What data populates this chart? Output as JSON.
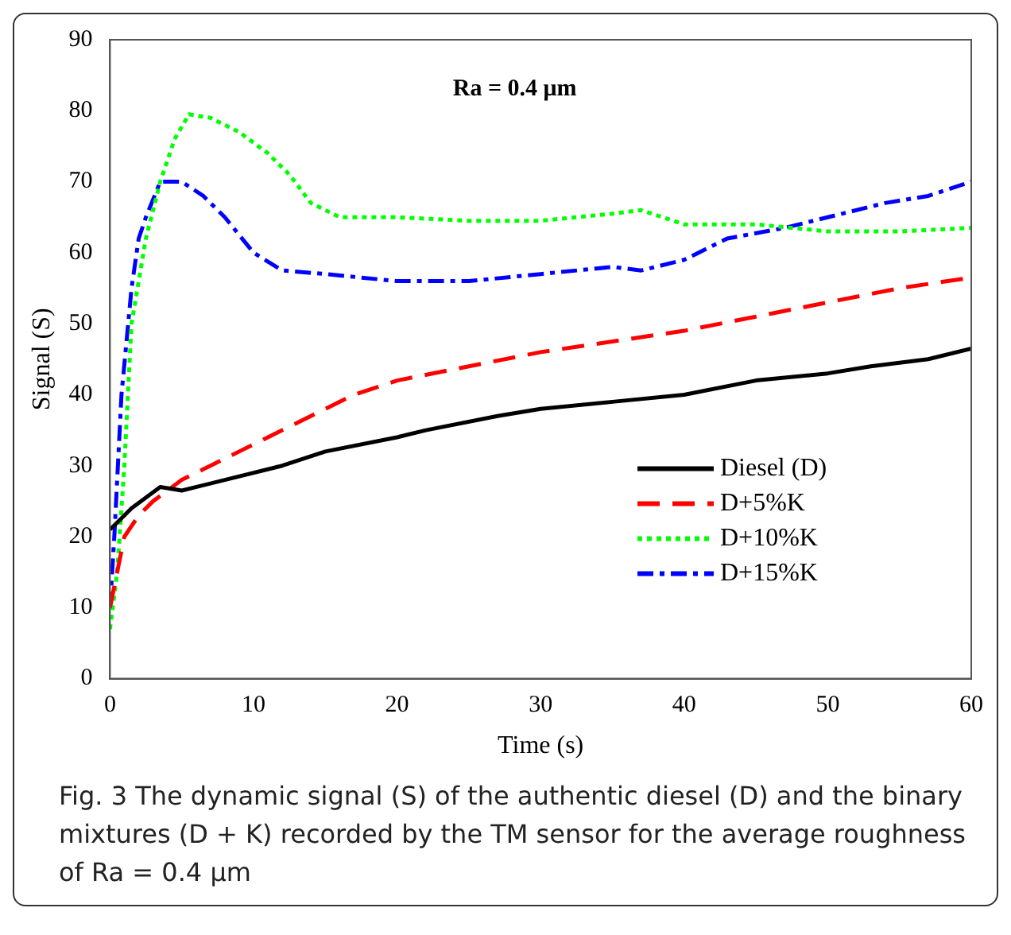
{
  "chart_data": {
    "type": "line",
    "xlabel": "Time (s)",
    "ylabel": "Signal (S)",
    "annotations": [
      "Ra = 0.4 μm",
      "Fig. 3 The dynamic signal (S) of the authentic diesel (D) and the binary mixtures (D + K) recorded by the TM sensor for the average roughness of Ra = 0.4 μm"
    ],
    "xlim": [
      0,
      60
    ],
    "xticks": [
      0,
      10,
      20,
      30,
      40,
      50,
      60
    ],
    "ylim": [
      0,
      90
    ],
    "yticks": [
      0,
      10,
      20,
      30,
      40,
      50,
      60,
      70,
      80,
      90
    ],
    "grid": false,
    "legend": "bottom right",
    "marker": "none",
    "series": [
      {
        "name": "Diesel (D)",
        "color": "#000000",
        "line_style": "solid",
        "x": [
          0,
          0.5,
          1.5,
          3.5,
          5,
          8,
          12,
          15,
          20,
          22,
          27,
          30,
          35,
          40,
          45,
          50,
          53,
          57,
          60
        ],
        "values": [
          21,
          22,
          24,
          27,
          26.5,
          28,
          30,
          32,
          34,
          35,
          37,
          38,
          39,
          40,
          42,
          43,
          44,
          45,
          46.5
        ]
      },
      {
        "name": "D+5%K",
        "color": "#ff0000",
        "line_style": "dashed",
        "x": [
          0,
          0.5,
          1,
          2,
          3,
          5,
          7,
          9,
          12,
          15,
          17,
          20,
          25,
          30,
          35,
          40,
          45,
          50,
          55,
          60
        ],
        "values": [
          10,
          15,
          20,
          23,
          25,
          28,
          30,
          32,
          35,
          38,
          40,
          42,
          44,
          46,
          47.5,
          49,
          51,
          53,
          55,
          56.5
        ]
      },
      {
        "name": "D+10%K",
        "color": "#00ff00",
        "line_style": "dotted",
        "x": [
          0,
          0.5,
          1,
          1.5,
          2.5,
          3.5,
          4.5,
          5.5,
          7,
          9,
          11,
          12.5,
          14,
          16,
          20,
          25,
          30,
          35,
          37,
          40,
          45,
          50,
          55,
          60
        ],
        "values": [
          7,
          15,
          30,
          50,
          62,
          70,
          76,
          79.5,
          79,
          77,
          74,
          71,
          67,
          65,
          65,
          64.5,
          64.5,
          65.5,
          66,
          64,
          64,
          63,
          63,
          63.5
        ]
      },
      {
        "name": "D+15%K",
        "color": "#0000ff",
        "line_style": "dashdot",
        "x": [
          0,
          0.3,
          0.8,
          1.5,
          2,
          2.5,
          3.5,
          5,
          6.5,
          8,
          10,
          12,
          15,
          20,
          25,
          30,
          35,
          37,
          40,
          43,
          47,
          50,
          54,
          57,
          60
        ],
        "values": [
          10,
          20,
          40,
          55,
          62,
          65,
          70,
          70,
          68,
          65,
          60,
          57.5,
          57,
          56,
          56,
          57,
          58,
          57.5,
          59,
          62,
          63.5,
          65,
          67,
          68,
          70
        ]
      }
    ]
  }
}
